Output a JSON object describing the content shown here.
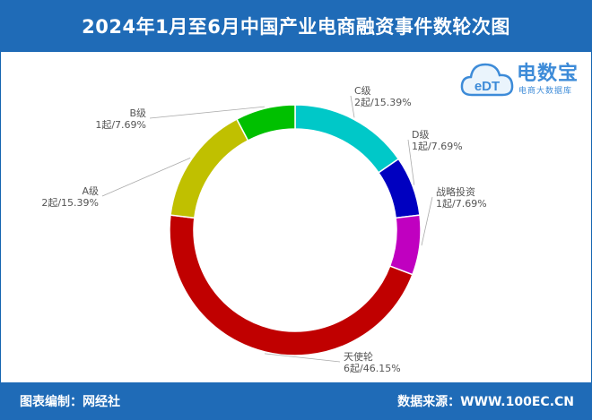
{
  "header": {
    "title": "2024年1月至6月中国产业电商融资事件数轮次图"
  },
  "logo": {
    "name": "电数宝",
    "subtitle": "电商大数据库",
    "mark": "eDT"
  },
  "footer": {
    "left": "图表编制：网经社",
    "right": "数据来源：WWW.100EC.CN"
  },
  "chart_data": {
    "type": "pie",
    "donut": true,
    "start_clockwise_from": "top",
    "slices": [
      {
        "name": "C级",
        "count": 2,
        "value": 15.39,
        "label": "2起/15.39%",
        "color": "#00c8c8"
      },
      {
        "name": "D级",
        "count": 1,
        "value": 7.69,
        "label": "1起/7.69%",
        "color": "#0000c0"
      },
      {
        "name": "战略投资",
        "count": 1,
        "value": 7.69,
        "label": "1起/7.69%",
        "color": "#c000c0"
      },
      {
        "name": "天使轮",
        "count": 6,
        "value": 46.15,
        "label": "6起/46.15%",
        "color": "#c00000"
      },
      {
        "name": "A级",
        "count": 2,
        "value": 15.39,
        "label": "2起/15.39%",
        "color": "#c0c000"
      },
      {
        "name": "B级",
        "count": 1,
        "value": 7.69,
        "label": "1起/7.69%",
        "color": "#00c000"
      }
    ]
  }
}
